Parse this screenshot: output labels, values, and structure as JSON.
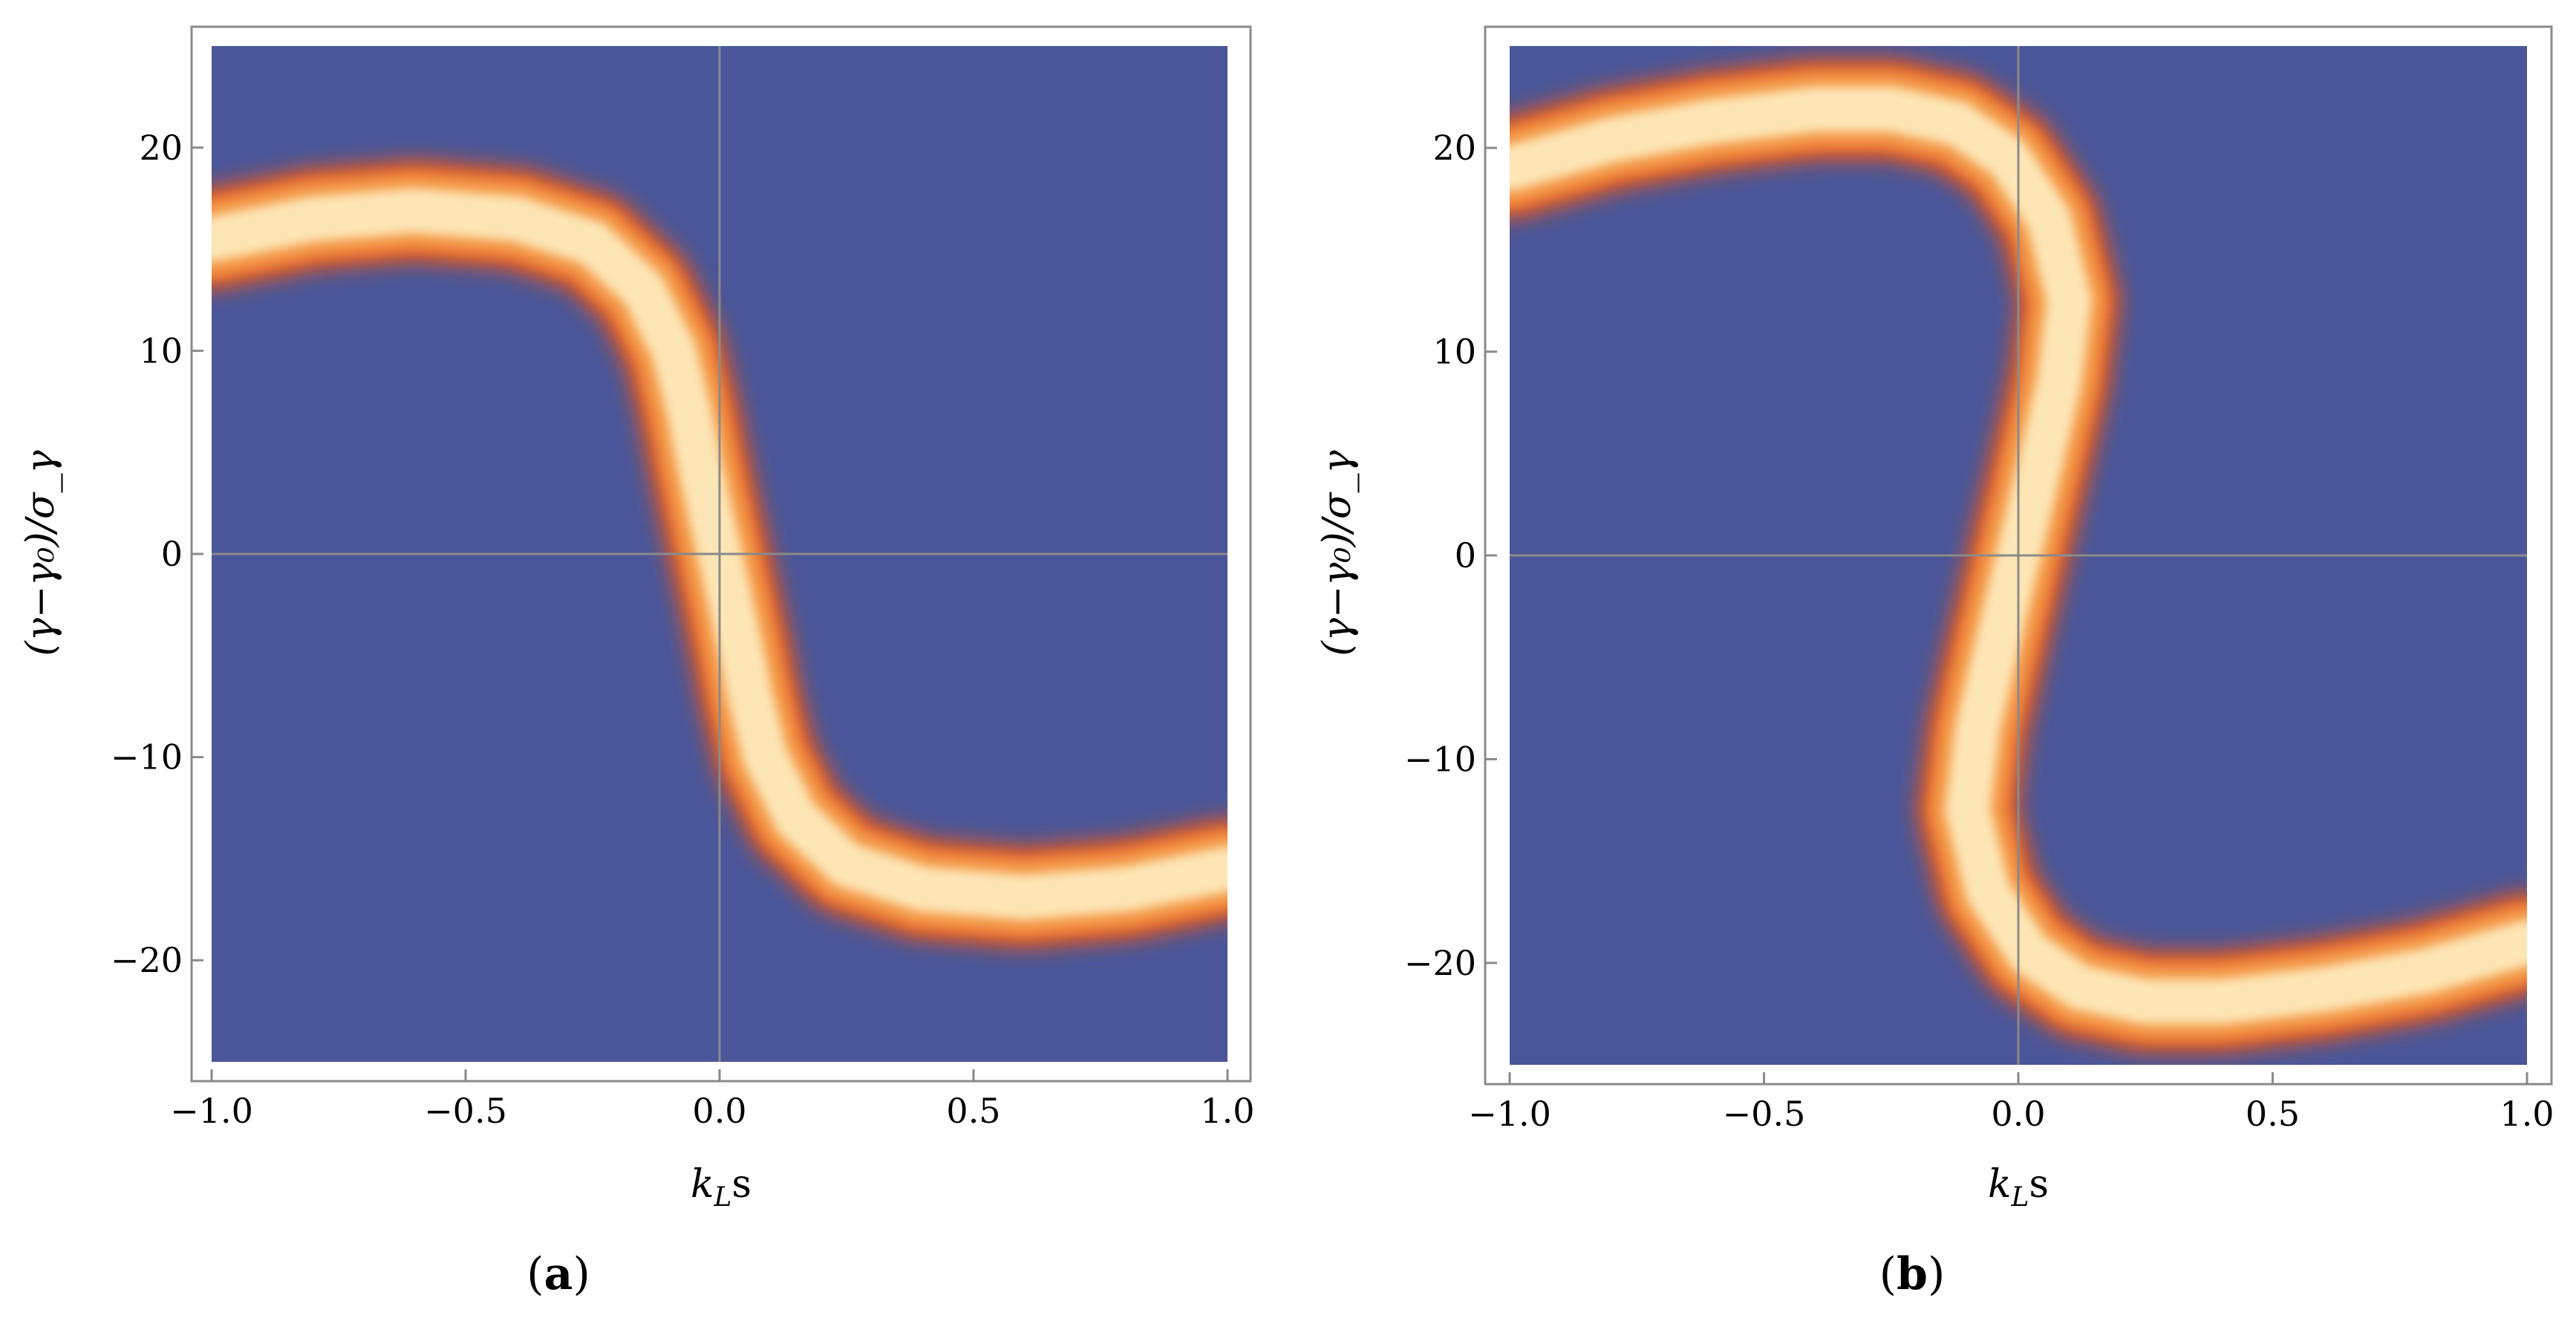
{
  "colors": {
    "background": "#4a5699",
    "band_edge": "#e2551f",
    "band_mid": "#f49a48",
    "band_core": "#fde6b6",
    "frame": "#8a8a8a",
    "crosshair": "#8a8a8a"
  },
  "chart_data": [
    {
      "type": "heatmap",
      "panel_label_open": "(",
      "panel_label_letter": "a",
      "panel_label_close": ")",
      "xlabel_main": "k",
      "xlabel_sub": "L",
      "xlabel_tail": "s",
      "ylabel": "(γ−γ₀)/σ_γ",
      "xlim": [
        -1.0,
        1.0
      ],
      "ylim": [
        -25,
        25
      ],
      "x_ticks": [
        "−1.0",
        "−0.5",
        "0.0",
        "0.5",
        "1.0"
      ],
      "x_tick_values": [
        -1.0,
        -0.5,
        0.0,
        0.5,
        1.0
      ],
      "y_ticks": [
        "20",
        "10",
        "0",
        "−10",
        "−20"
      ],
      "y_tick_values": [
        20,
        10,
        0,
        -10,
        -20
      ],
      "grid": false,
      "crosshair_at_zero": true,
      "band_centerline": {
        "x": [
          -1.0,
          -0.8,
          -0.6,
          -0.4,
          -0.25,
          -0.15,
          -0.09,
          -0.06,
          -0.04,
          -0.02,
          0.0,
          0.02,
          0.04,
          0.06,
          0.09,
          0.15,
          0.25,
          0.4,
          0.6,
          0.8,
          1.0
        ],
        "y": [
          15.5,
          16.5,
          16.9,
          16.5,
          15.3,
          13.0,
          10.0,
          7.0,
          4.5,
          2.2,
          0.0,
          -2.2,
          -4.5,
          -7.0,
          -10.0,
          -13.0,
          -15.3,
          -16.5,
          -16.9,
          -16.5,
          -15.5
        ]
      },
      "band_half_width_x": 0.08,
      "band_half_width_y": 2.0
    },
    {
      "type": "heatmap",
      "panel_label_open": "(",
      "panel_label_letter": "b",
      "panel_label_close": ")",
      "xlabel_main": "k",
      "xlabel_sub": "L",
      "xlabel_tail": "s",
      "ylabel": "(γ−γ₀)/σ_γ",
      "xlim": [
        -1.0,
        1.0
      ],
      "ylim": [
        -25,
        25
      ],
      "x_ticks": [
        "−1.0",
        "−0.5",
        "0.0",
        "0.5",
        "1.0"
      ],
      "x_tick_values": [
        -1.0,
        -0.5,
        0.0,
        0.5,
        1.0
      ],
      "y_ticks": [
        "20",
        "10",
        "0",
        "−10",
        "−20"
      ],
      "y_tick_values": [
        20,
        10,
        0,
        -10,
        -20
      ],
      "grid": false,
      "crosshair_at_zero": true,
      "band_centerline": {
        "x": [
          -1.0,
          -0.8,
          -0.6,
          -0.4,
          -0.25,
          -0.12,
          -0.02,
          0.06,
          0.1,
          0.08,
          0.04,
          0.0,
          -0.04,
          -0.08,
          -0.1,
          -0.06,
          0.02,
          0.12,
          0.25,
          0.4,
          0.6,
          0.8,
          1.0
        ],
        "y": [
          19.0,
          20.4,
          21.3,
          21.9,
          21.9,
          21.2,
          19.5,
          16.5,
          12.5,
          8.5,
          4.2,
          0.0,
          -4.2,
          -8.5,
          -12.5,
          -16.5,
          -19.5,
          -21.2,
          -21.9,
          -21.9,
          -21.3,
          -20.4,
          -19.0
        ]
      },
      "band_half_width_x": 0.08,
      "band_half_width_y": 2.0
    }
  ]
}
